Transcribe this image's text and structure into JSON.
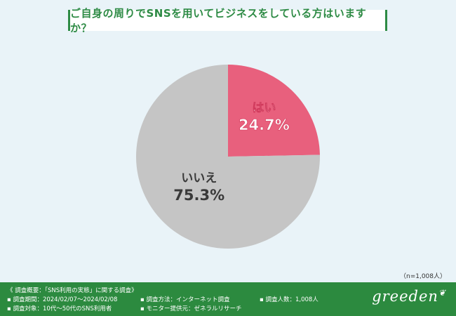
{
  "title": "ご自身の周りでSNSを用いてビジネスをしている方はいますか？",
  "sample_size": "（n=1,008人）",
  "colors": {
    "yes": "#e8607d",
    "no": "#c5c5c5",
    "brand": "#2c8a3f"
  },
  "chart_data": {
    "type": "pie",
    "title": "ご自身の周りでSNSを用いてビジネスをしている方はいますか？",
    "slices": [
      {
        "label": "はい",
        "value": 24.7,
        "display": "24.7%",
        "color": "#e8607d"
      },
      {
        "label": "いいえ",
        "value": 75.3,
        "display": "75.3%",
        "color": "#c5c5c5"
      }
    ]
  },
  "footer": {
    "overview": "《 調査概要：「SNS利用の実態」に関する調査》",
    "period": "▪ 調査期間：2024/02/07〜2024/02/08",
    "target": "▪ 調査対象：10代〜50代のSNS利用者",
    "method": "▪ 調査方法：インターネット調査",
    "provider": "▪ モニター提供元：ゼネラルリサーチ",
    "count": "▪ 調査人数：1,008人",
    "logo": "greeden"
  }
}
